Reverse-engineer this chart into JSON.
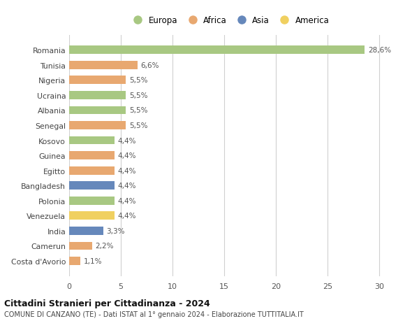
{
  "countries": [
    "Romania",
    "Tunisia",
    "Nigeria",
    "Ucraina",
    "Albania",
    "Senegal",
    "Kosovo",
    "Guinea",
    "Egitto",
    "Bangladesh",
    "Polonia",
    "Venezuela",
    "India",
    "Camerun",
    "Costa d'Avorio"
  ],
  "values": [
    28.6,
    6.6,
    5.5,
    5.5,
    5.5,
    5.5,
    4.4,
    4.4,
    4.4,
    4.4,
    4.4,
    4.4,
    3.3,
    2.2,
    1.1
  ],
  "labels": [
    "28,6%",
    "6,6%",
    "5,5%",
    "5,5%",
    "5,5%",
    "5,5%",
    "4,4%",
    "4,4%",
    "4,4%",
    "4,4%",
    "4,4%",
    "4,4%",
    "3,3%",
    "2,2%",
    "1,1%"
  ],
  "continents": [
    "Europa",
    "Africa",
    "Africa",
    "Europa",
    "Europa",
    "Africa",
    "Europa",
    "Africa",
    "Africa",
    "Asia",
    "Europa",
    "America",
    "Asia",
    "Africa",
    "Africa"
  ],
  "colors": {
    "Europa": "#a8c882",
    "Africa": "#e8a870",
    "Asia": "#6688bb",
    "America": "#f0d060"
  },
  "legend_order": [
    "Europa",
    "Africa",
    "Asia",
    "America"
  ],
  "xlim": [
    0,
    31
  ],
  "xticks": [
    0,
    5,
    10,
    15,
    20,
    25,
    30
  ],
  "title": "Cittadini Stranieri per Cittadinanza - 2024",
  "subtitle": "COMUNE DI CANZANO (TE) - Dati ISTAT al 1° gennaio 2024 - Elaborazione TUTTITALIA.IT",
  "bg_color": "#ffffff",
  "grid_color": "#d0d0d0",
  "bar_height": 0.55
}
